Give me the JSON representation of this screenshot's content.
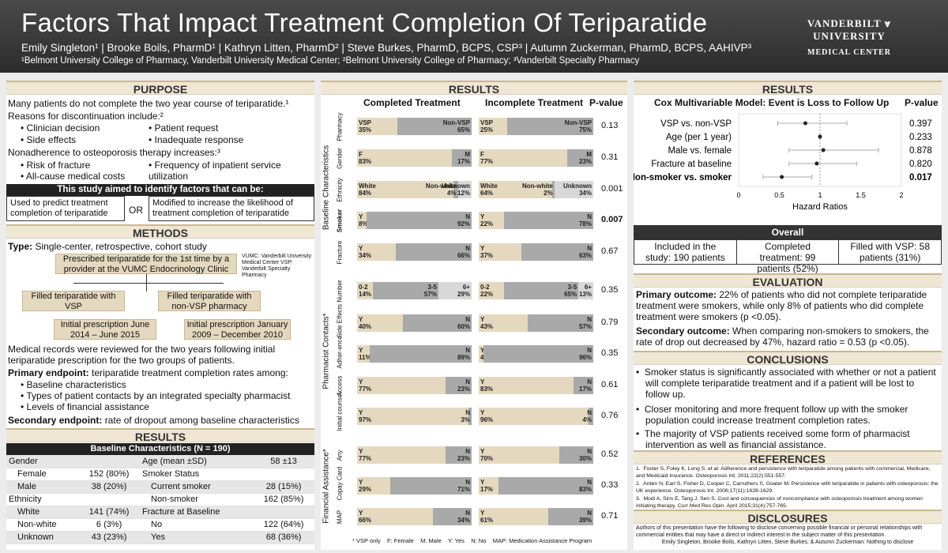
{
  "header": {
    "title": "Factors That Impact Treatment Completion Of Teriparatide",
    "authors": "Emily Singleton¹ | Brooke Boils, PharmD¹ | Kathryn Litten, PharmD² | Steve Burkes, PharmD, BCPS, CSP³ | Autumn Zuckerman, PharmD, BCPS, AAHIVP³",
    "affiliations": "¹Belmont University College of Pharmacy, Vanderbilt University Medical Center; ²Belmont University College of Pharmacy; ³Vanderbilt Specialty Pharmacy",
    "logo_line1": "VANDERBILT ⩔ UNIVERSITY",
    "logo_line2": "MEDICAL CENTER"
  },
  "purpose": {
    "heading": "PURPOSE",
    "p1": "Many patients do not complete the two year course of teriparatide.¹",
    "reasons": "Reasons for discontinuation include:²",
    "r1": "Clinician decision",
    "r2": "Patient request",
    "r3": "Side effects",
    "r4": "Inadequate response",
    "nonadh": "Nonadherence to osteoporosis therapy increases:³",
    "n1": "Risk of fracture",
    "n2": "Frequency of inpatient service utilization",
    "n3": "All-cause medical costs",
    "aim": "This study aimed to identify factors that can be:",
    "aim_left": "Used to predict treatment completion of teriparatide",
    "aim_or": "OR",
    "aim_right": "Modified to increase the likelihood of treatment completion of teriparatide"
  },
  "methods": {
    "heading": "METHODS",
    "type_label": "Type:",
    "type_text": "Single-center, retrospective, cohort study",
    "flow_top": "Prescribed teriparatide for the 1st time by a provider at the VUMC Endocrinology Clinic",
    "note": "VUMC: Vanderbilt University Medical Center VSP: Vanderbilt Specialty Pharmacy",
    "flow_l": "Filled teriparatide with VSP",
    "flow_r": "Filled teriparatide with non-VSP pharmacy",
    "date_l": "Initial prescription June 2014 – June 2015",
    "date_r": "Initial prescription January 2009 – December 2010",
    "records": "Medical records were reviewed for the two years following initial teriparatide prescription for the two groups of patients.",
    "primary_label": "Primary endpoint:",
    "primary_text": "teriparatide treatment completion rates among:",
    "e1": "Baseline characteristics",
    "e2": "Types of patient contacts by an integrated specialty pharmacist",
    "e3": "Levels of financial assistance",
    "secondary_label": "Secondary endpoint:",
    "secondary_text": "rate of dropout among baseline characteristics"
  },
  "baseline": {
    "heading": "RESULTS",
    "table_title": "Baseline Characteristics (N = 190)",
    "rows": [
      [
        "Gender",
        "",
        "Age (mean ±SD)",
        "58 ±13"
      ],
      [
        "Female",
        "152  (80%)",
        "Smoker Status",
        ""
      ],
      [
        "Male",
        "38  (20%)",
        "Current smoker",
        "28  (15%)"
      ],
      [
        "Ethnicity",
        "",
        "Non-smoker",
        "162  (85%)"
      ],
      [
        "White",
        "141  (74%)",
        "Fracture at Baseline",
        ""
      ],
      [
        "Non-white",
        "6  (3%)",
        "No",
        "122  (64%)"
      ],
      [
        "Unknown",
        "43  (23%)",
        "Yes",
        "68  (36%)"
      ]
    ]
  },
  "results_mid": {
    "heading": "RESULTS",
    "col_completed": "Completed Treatment",
    "col_incomplete": "Incomplete Treatment",
    "col_p": "P-value",
    "group_baseline": "Baseline Characteristics",
    "group_contacts": "Pharmacist Contacts*",
    "group_financial": "Financial Assistance*",
    "footnote": "* VSP only    F: Female    M: Male    Y: Yes    N: No    MAP: Medication Assistance Program",
    "rows": [
      {
        "label": "Pharmacy",
        "p": "0.13",
        "bold": false,
        "c": [
          [
            "VSP",
            "35%",
            35
          ],
          [
            "Non-VSP",
            "65%",
            65
          ]
        ],
        "i": [
          [
            "VSP",
            "25%",
            25
          ],
          [
            "Non-VSP",
            "75%",
            75
          ]
        ]
      },
      {
        "label": "Gender",
        "p": "0.31",
        "bold": false,
        "c": [
          [
            "F",
            "83%",
            83
          ],
          [
            "M",
            "17%",
            17
          ]
        ],
        "i": [
          [
            "F",
            "77%",
            77
          ],
          [
            "M",
            "23%",
            23
          ]
        ]
      },
      {
        "label": "Ethnicity",
        "p": "0.001",
        "bold": false,
        "c": [
          [
            "White",
            "84%",
            84
          ],
          [
            "Non-white",
            "4%",
            4
          ],
          [
            "Unknown",
            "12%",
            12
          ]
        ],
        "i": [
          [
            "White",
            "64%",
            64
          ],
          [
            "Non-white",
            "2%",
            2
          ],
          [
            "Unknown",
            "34%",
            34
          ]
        ]
      },
      {
        "label": "Smoker",
        "p": "0.007",
        "bold": true,
        "c": [
          [
            "Y",
            "8%",
            8
          ],
          [
            "N",
            "92%",
            92
          ]
        ],
        "i": [
          [
            "Y",
            "22%",
            22
          ],
          [
            "N",
            "78%",
            78
          ]
        ]
      },
      {
        "label": "Fracture",
        "p": "0.67",
        "bold": false,
        "c": [
          [
            "Y",
            "34%",
            34
          ],
          [
            "N",
            "66%",
            66
          ]
        ],
        "i": [
          [
            "Y",
            "37%",
            37
          ],
          [
            "N",
            "63%",
            63
          ]
        ]
      },
      {
        "label": "Number",
        "p": "0.35",
        "bold": false,
        "c": [
          [
            "0-2",
            "14%",
            14
          ],
          [
            "3-5",
            "57%",
            57
          ],
          [
            "6+",
            "29%",
            29
          ]
        ],
        "i": [
          [
            "0-2",
            "22%",
            22
          ],
          [
            "3-5",
            "65%",
            65
          ],
          [
            "6+",
            "13%",
            13
          ]
        ]
      },
      {
        "label": "Side Effects",
        "p": "0.79",
        "bold": false,
        "c": [
          [
            "Y",
            "40%",
            40
          ],
          [
            "N",
            "60%",
            60
          ]
        ],
        "i": [
          [
            "Y",
            "43%",
            43
          ],
          [
            "N",
            "57%",
            57
          ]
        ]
      },
      {
        "label": "Adher-ence",
        "p": "0.35",
        "bold": false,
        "c": [
          [
            "Y",
            "11%",
            11
          ],
          [
            "N",
            "89%",
            89
          ]
        ],
        "i": [
          [
            "Y",
            "4%",
            4
          ],
          [
            "N",
            "96%",
            96
          ]
        ]
      },
      {
        "label": "Access",
        "p": "0.61",
        "bold": false,
        "c": [
          [
            "Y",
            "77%",
            77
          ],
          [
            "N",
            "23%",
            23
          ]
        ],
        "i": [
          [
            "Y",
            "83%",
            83
          ],
          [
            "N",
            "17%",
            17
          ]
        ]
      },
      {
        "label": "Initial counsel",
        "p": "0.76",
        "bold": false,
        "c": [
          [
            "Y",
            "97%",
            97
          ],
          [
            "N",
            "3%",
            3
          ]
        ],
        "i": [
          [
            "Y",
            "96%",
            96
          ],
          [
            "N",
            "4%",
            4
          ]
        ]
      },
      {
        "label": "Any",
        "p": "0.52",
        "bold": false,
        "c": [
          [
            "Y",
            "77%",
            77
          ],
          [
            "N",
            "23%",
            23
          ]
        ],
        "i": [
          [
            "Y",
            "70%",
            70
          ],
          [
            "N",
            "30%",
            30
          ]
        ]
      },
      {
        "label": "Copay Card",
        "p": "0.33",
        "bold": false,
        "c": [
          [
            "Y",
            "29%",
            29
          ],
          [
            "N",
            "71%",
            71
          ]
        ],
        "i": [
          [
            "Y",
            "17%",
            17
          ],
          [
            "N",
            "83%",
            83
          ]
        ]
      },
      {
        "label": "MAP",
        "p": "0.71",
        "bold": false,
        "c": [
          [
            "Y",
            "66%",
            66
          ],
          [
            "N",
            "34%",
            34
          ]
        ],
        "i": [
          [
            "Y",
            "61%",
            61
          ],
          [
            "N",
            "39%",
            39
          ]
        ]
      }
    ]
  },
  "chart_data": {
    "type": "scatter",
    "title": "Cox Multivariable Model: Event is Loss to Follow Up",
    "xlabel": "Hazard Ratios",
    "xlim": [
      0,
      2
    ],
    "xticks": [
      "0",
      "0.5",
      "1",
      "1.5",
      "2"
    ],
    "p_header": "P-value",
    "categories": [
      "VSP vs. non-VSP",
      "Age (per 1 year)",
      "Male vs. female",
      "Fracture at baseline",
      "Non-smoker vs. smoker"
    ],
    "values": [
      0.82,
      1.0,
      1.04,
      0.96,
      0.53
    ],
    "ci_low": [
      0.48,
      0.99,
      0.62,
      0.62,
      0.3
    ],
    "ci_high": [
      1.33,
      1.01,
      1.72,
      1.45,
      0.9
    ],
    "pvalues": [
      "0.397",
      "0.233",
      "0.878",
      "0.820",
      "0.017"
    ],
    "bold": [
      false,
      false,
      false,
      false,
      true
    ]
  },
  "overall": {
    "heading": "Overall",
    "c1": "Included in the study: 190 patients",
    "c2": "Completed treatment: 99 patients (52%)",
    "c3": "Filled with VSP: 58 patients (31%)"
  },
  "evaluation": {
    "heading": "EVALUATION",
    "primary_label": "Primary outcome:",
    "primary_text": "22% of patients who did not complete teriparatide treatment were smokers, while only 8% of patients who did complete treatment were smokers (p <0.05).",
    "secondary_label": "Secondary outcome:",
    "secondary_text": "When comparing non-smokers to smokers, the rate of drop out decreased by 47%, hazard ratio = 0.53 (p <0.05)."
  },
  "conclusions": {
    "heading": "CONCLUSIONS",
    "c1": "Smoker status is significantly associated with whether or not a patient will complete teriparatide treatment and if a patient will be lost to follow up.",
    "c2": "Closer monitoring and more frequent follow up with the smoker population could increase treatment completion rates.",
    "c3": "The majority of VSP patients received some form of pharmacist intervention as well as financial assistance."
  },
  "references": {
    "heading": "REFERENCES",
    "r1": "Foster S, Foley K, Long S, et al. Adherence and persistence with teriparatide among patients with commercial, Medicare, and Medicaid insurance. Osteoporosis Int. 2011;22(2):551-557.",
    "r2": "Arden N, Earl S, Fisher D, Cooper C, Carruthers S, Goater M. Persistence with teriparatide in patients with osteoporosis: the UK experience. Osteoporosis Int. 2006;17(11):1626-1629.",
    "r3": "Modi A, Siris E, Tang J, Sen S. Cost and consequences of noncompliance with osteoporosis treatment among women initiating therapy. Curr Med Res Opin. April 2015;31(4):757-765."
  },
  "disclosures": {
    "heading": "DISCLOSURES",
    "text": "Authors of this presentation have the following to disclose concerning possible financial or personal relationships with commercial entities that may have a direct or indirect interest in the subject matter of this presentation.",
    "names": "Emily Singleton, Brooke Boils, Kathryn Litten, Steve Burkes, & Autumn Zuckerman: Nothing to disclose"
  },
  "colors": {
    "tan": "#e4d8bf",
    "gray": "#a9a9a9",
    "light": "#d8d8d8"
  }
}
